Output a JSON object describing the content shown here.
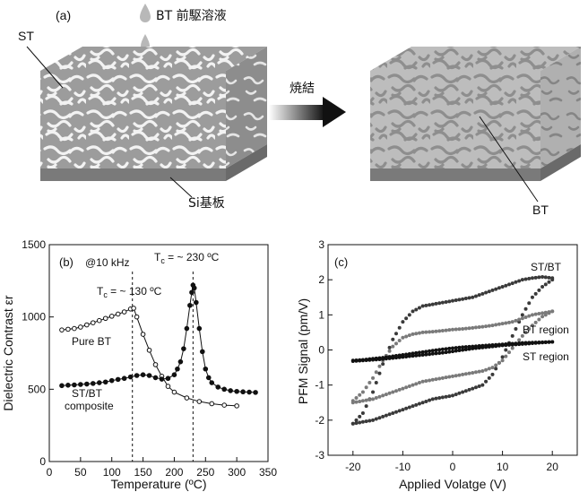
{
  "panel_a": {
    "label": "(a)",
    "precursor_label": "BT 前駆溶液",
    "st_label": "ST",
    "substrate_label": "Si基板",
    "process_label": "焼結",
    "bt_label": "BT",
    "colors": {
      "st_pattern": "#9a9a9a",
      "bt_fill": "#c8c8c8",
      "substrate": "#7a7a7a"
    }
  },
  "chart_data": [
    {
      "type": "line",
      "panel_label": "(b)",
      "annotation_freq": "@10 kHz",
      "title": "",
      "xlabel": "Temperature (ºC)",
      "ylabel": "Dielectric Contrast εr",
      "xlim": [
        0,
        350
      ],
      "ylim": [
        0,
        1500
      ],
      "x_ticks": [
        "0",
        "50",
        "100",
        "150",
        "200",
        "250",
        "300",
        "350"
      ],
      "y_ticks": [
        "0",
        "500",
        "1000",
        "1500"
      ],
      "annotations": [
        {
          "text": "Tc = ~ 130 ºC",
          "sub": "c",
          "main": "T",
          "rest": " = ~ 130 ºC",
          "x": 133
        },
        {
          "text": "Tc = ~ 230 ºC",
          "sub": "c",
          "main": "T",
          "rest": " = ~ 230 ºC",
          "x": 230
        }
      ],
      "series": [
        {
          "name": "Pure BT",
          "marker": "open-circle",
          "x": [
            20,
            30,
            40,
            50,
            60,
            70,
            80,
            90,
            100,
            110,
            120,
            130,
            135,
            140,
            150,
            160,
            170,
            180,
            190,
            200,
            220,
            240,
            260,
            280,
            300
          ],
          "y": [
            910,
            915,
            920,
            930,
            945,
            960,
            975,
            990,
            1005,
            1020,
            1035,
            1055,
            1060,
            1000,
            880,
            770,
            670,
            590,
            520,
            480,
            440,
            415,
            400,
            390,
            385
          ]
        },
        {
          "name": "ST/BT composite",
          "name_line1": "ST/BT",
          "name_line2": "composite",
          "marker": "filled-circle",
          "x": [
            20,
            30,
            40,
            50,
            60,
            70,
            80,
            90,
            100,
            110,
            120,
            130,
            140,
            150,
            160,
            170,
            180,
            190,
            200,
            205,
            210,
            215,
            220,
            225,
            228,
            230,
            232,
            235,
            240,
            245,
            250,
            255,
            260,
            270,
            280,
            290,
            300,
            310,
            320,
            330
          ],
          "y": [
            525,
            528,
            530,
            533,
            536,
            540,
            545,
            550,
            560,
            568,
            575,
            585,
            595,
            600,
            595,
            580,
            570,
            575,
            600,
            640,
            690,
            780,
            920,
            1080,
            1170,
            1220,
            1200,
            1100,
            920,
            760,
            640,
            580,
            545,
            515,
            500,
            490,
            485,
            482,
            480,
            478
          ]
        }
      ],
      "grid": false
    },
    {
      "type": "scatter",
      "panel_label": "(c)",
      "title": "",
      "xlabel": "Applied Volatge (V)",
      "ylabel": "PFM Signal (pm/V)",
      "xlim": [
        -25,
        25
      ],
      "ylim": [
        -3,
        3
      ],
      "x_ticks": [
        "-20",
        "-10",
        "0",
        "10",
        "20"
      ],
      "y_ticks": [
        "-3",
        "-2",
        "-1",
        "0",
        "1",
        "2",
        "3"
      ],
      "grid": false,
      "series": [
        {
          "name": "ST/BT",
          "color": "#3a3a3a",
          "upper": {
            "x": [
              -20,
              -18,
              -16,
              -14,
              -12,
              -10,
              -8,
              -6,
              -4,
              -2,
              0,
              2,
              4,
              6,
              8,
              10,
              12,
              14,
              16,
              18,
              20
            ],
            "y": [
              -2.1,
              -1.8,
              -1.2,
              -0.4,
              0.3,
              0.8,
              1.1,
              1.25,
              1.3,
              1.35,
              1.4,
              1.45,
              1.5,
              1.6,
              1.7,
              1.8,
              1.9,
              2.0,
              2.05,
              2.08,
              2.05
            ]
          },
          "lower": {
            "x": [
              20,
              18,
              16,
              14,
              12,
              10,
              8,
              6,
              4,
              2,
              0,
              -2,
              -4,
              -6,
              -8,
              -10,
              -12,
              -14,
              -16,
              -18,
              -20
            ],
            "y": [
              2.0,
              1.8,
              1.5,
              1.0,
              0.4,
              -0.2,
              -0.7,
              -1.0,
              -1.1,
              -1.2,
              -1.3,
              -1.35,
              -1.4,
              -1.5,
              -1.6,
              -1.7,
              -1.8,
              -1.9,
              -2.0,
              -2.05,
              -2.1
            ]
          }
        },
        {
          "name": "BT region",
          "color": "#7a7a7a",
          "upper": {
            "x": [
              -20,
              -18,
              -16,
              -14,
              -12,
              -10,
              -8,
              -6,
              -4,
              -2,
              0,
              2,
              4,
              6,
              8,
              10,
              12,
              14,
              16,
              18,
              20
            ],
            "y": [
              -1.45,
              -1.2,
              -0.8,
              -0.3,
              0.1,
              0.35,
              0.45,
              0.5,
              0.52,
              0.55,
              0.58,
              0.6,
              0.63,
              0.66,
              0.7,
              0.75,
              0.8,
              0.9,
              1.0,
              1.05,
              1.1
            ]
          },
          "lower": {
            "x": [
              20,
              18,
              16,
              14,
              12,
              10,
              8,
              6,
              4,
              2,
              0,
              -2,
              -4,
              -6,
              -8,
              -10,
              -12,
              -14,
              -16,
              -18,
              -20
            ],
            "y": [
              1.1,
              0.95,
              0.7,
              0.4,
              0.05,
              -0.3,
              -0.5,
              -0.6,
              -0.65,
              -0.7,
              -0.75,
              -0.8,
              -0.85,
              -0.9,
              -1.0,
              -1.1,
              -1.2,
              -1.3,
              -1.4,
              -1.45,
              -1.5
            ]
          }
        },
        {
          "name": "ST region",
          "color": "#111111",
          "upper": {
            "x": [
              -20,
              -18,
              -16,
              -14,
              -12,
              -10,
              -8,
              -6,
              -4,
              -2,
              0,
              2,
              4,
              6,
              8,
              10,
              12,
              14,
              16,
              18,
              20
            ],
            "y": [
              -0.3,
              -0.28,
              -0.25,
              -0.22,
              -0.18,
              -0.14,
              -0.1,
              -0.06,
              -0.02,
              0.02,
              0.05,
              0.08,
              0.1,
              0.12,
              0.14,
              0.16,
              0.18,
              0.2,
              0.21,
              0.22,
              0.23
            ]
          },
          "lower": {
            "x": [
              20,
              18,
              16,
              14,
              12,
              10,
              8,
              6,
              4,
              2,
              0,
              -2,
              -4,
              -6,
              -8,
              -10,
              -12,
              -14,
              -16,
              -18,
              -20
            ],
            "y": [
              0.23,
              0.21,
              0.19,
              0.17,
              0.15,
              0.13,
              0.1,
              0.07,
              0.04,
              0.0,
              -0.04,
              -0.08,
              -0.11,
              -0.14,
              -0.17,
              -0.2,
              -0.23,
              -0.26,
              -0.28,
              -0.3,
              -0.32
            ]
          }
        }
      ]
    }
  ]
}
